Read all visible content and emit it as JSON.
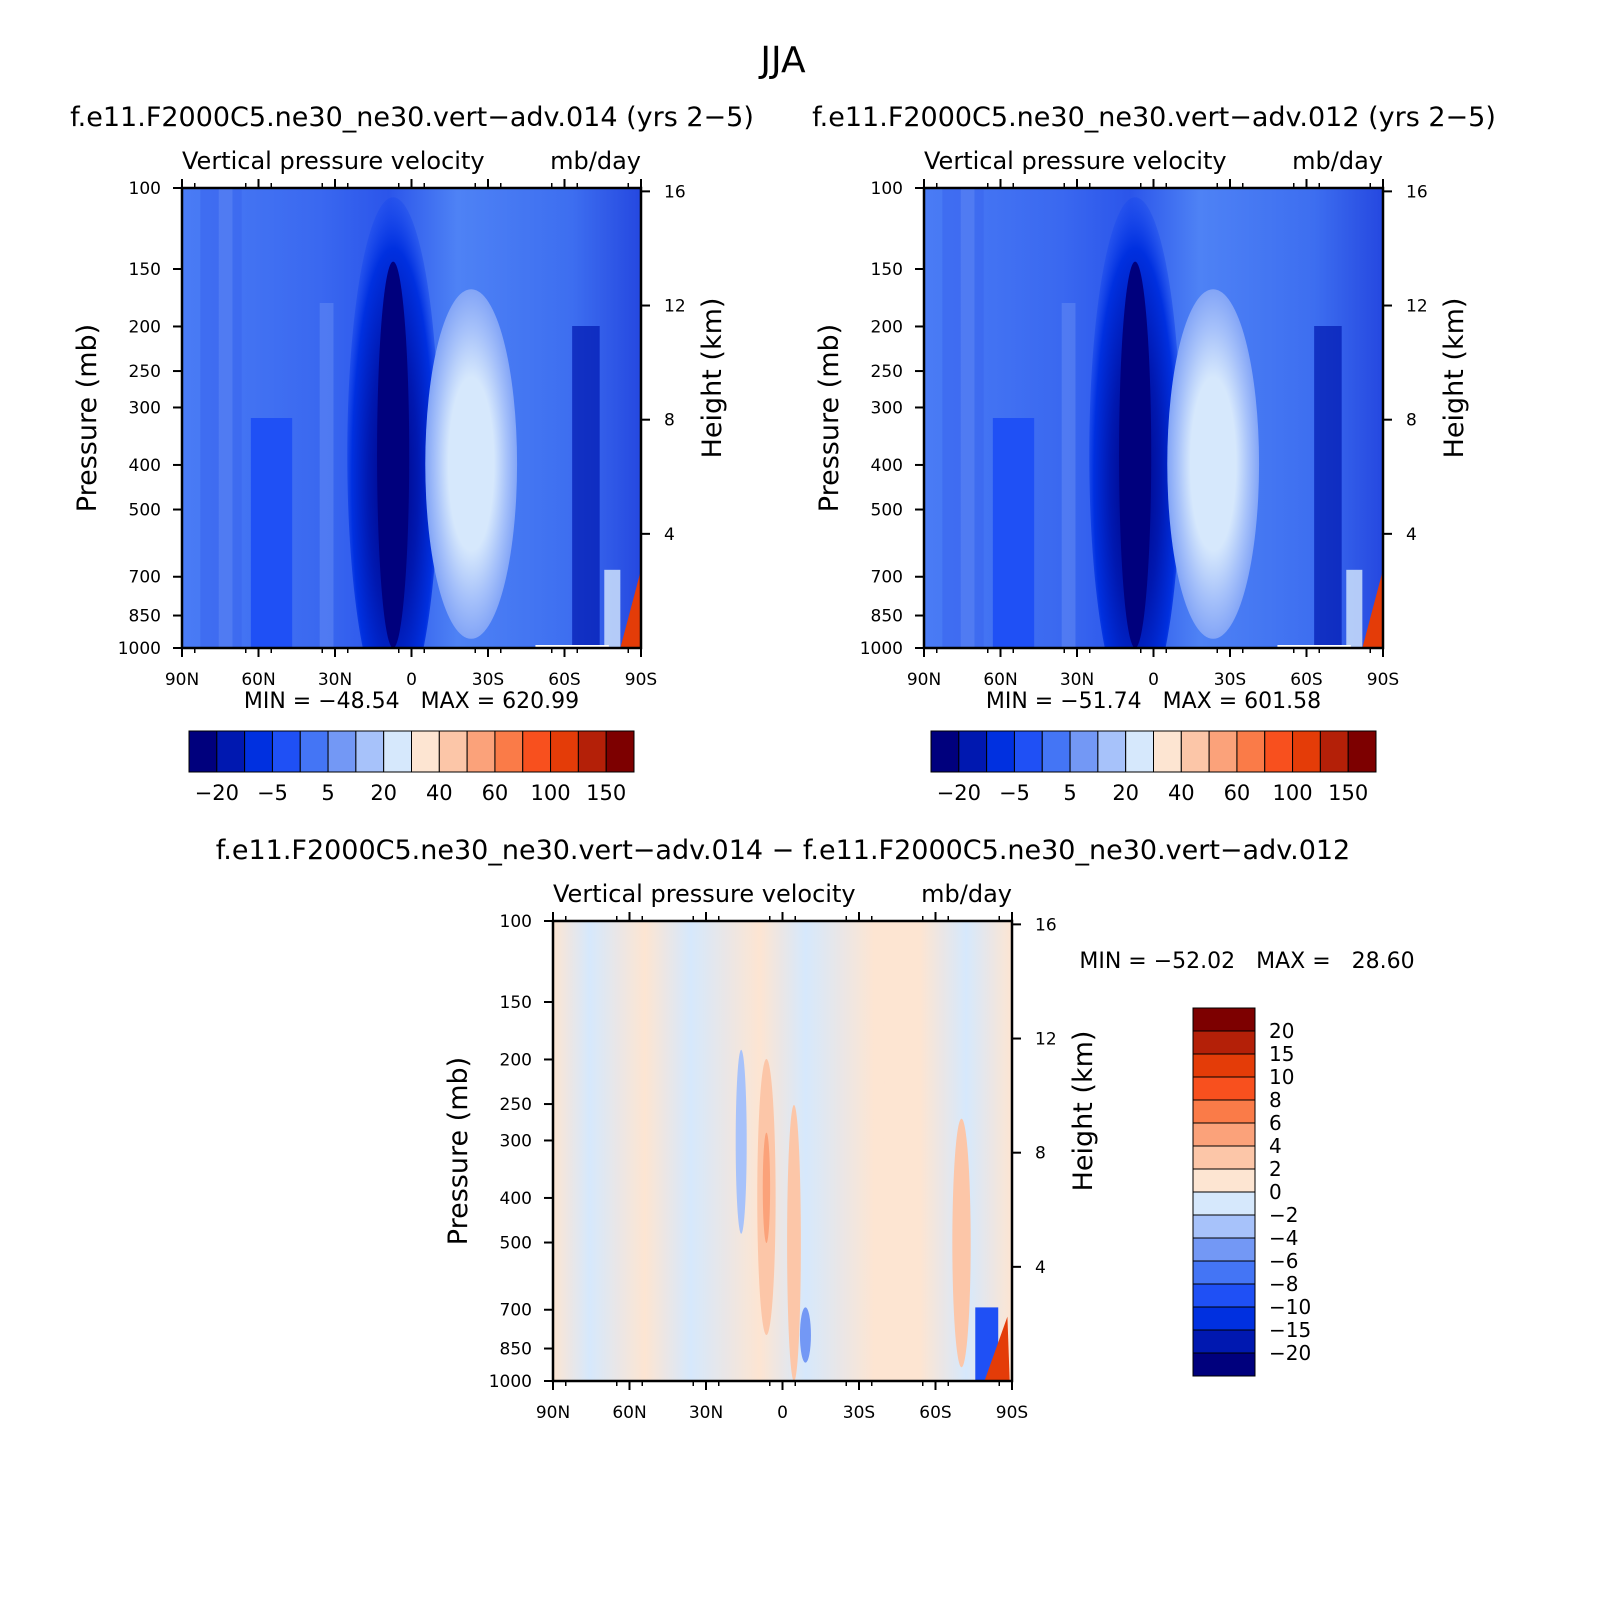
{
  "figure": {
    "title": "JJA"
  },
  "colors": {
    "abs_levels": [
      "#00007d",
      "#0018b0",
      "#0030e0",
      "#1f50f5",
      "#4475f5",
      "#7398f5",
      "#a7c2fa",
      "#d6e8fc",
      "#fde5d2",
      "#fcc6a8",
      "#fba27a",
      "#fa7b48",
      "#f8501e",
      "#e43c08",
      "#b42008",
      "#7d0000"
    ],
    "diff_levels": [
      "#00007d",
      "#0018b0",
      "#0030e0",
      "#1f50f5",
      "#4475f5",
      "#7398f5",
      "#a7c2fa",
      "#d6e8fc",
      "#fde5d2",
      "#fcc6a8",
      "#fba27a",
      "#fa7b48",
      "#f8501e",
      "#e43c08",
      "#b42008",
      "#7d0000"
    ]
  },
  "chart_data": [
    {
      "type": "heatmap",
      "title": "f.e11.F2000C5.ne30_ne30.vert−adv.014 (yrs 2−5)",
      "subtitle_left": "Vertical pressure velocity",
      "subtitle_right": "mb/day",
      "xlabel": "",
      "ylabel": "Pressure (mb)",
      "ylabel_right": "Height (km)",
      "x_ticks": [
        "90N",
        "60N",
        "30N",
        "0",
        "30S",
        "60S",
        "90S"
      ],
      "y_ticks": [
        "100",
        "150",
        "200",
        "250",
        "300",
        "400",
        "500",
        "700",
        "850",
        "1000"
      ],
      "y_ticks_right": [
        "16",
        "12",
        "8",
        "4"
      ],
      "y_scale": "log",
      "stats": "MIN = −48.54   MAX = 620.99",
      "colorbar_labels": [
        "−20",
        "−5",
        "5",
        "20",
        "40",
        "60",
        "100",
        "150"
      ],
      "colorbar_orientation": "horizontal"
    },
    {
      "type": "heatmap",
      "title": "f.e11.F2000C5.ne30_ne30.vert−adv.012 (yrs 2−5)",
      "subtitle_left": "Vertical pressure velocity",
      "subtitle_right": "mb/day",
      "xlabel": "",
      "ylabel": "Pressure (mb)",
      "ylabel_right": "Height (km)",
      "x_ticks": [
        "90N",
        "60N",
        "30N",
        "0",
        "30S",
        "60S",
        "90S"
      ],
      "y_ticks": [
        "100",
        "150",
        "200",
        "250",
        "300",
        "400",
        "500",
        "700",
        "850",
        "1000"
      ],
      "y_ticks_right": [
        "16",
        "12",
        "8",
        "4"
      ],
      "y_scale": "log",
      "stats": "MIN = −51.74   MAX = 601.58",
      "colorbar_labels": [
        "−20",
        "−5",
        "5",
        "20",
        "40",
        "60",
        "100",
        "150"
      ],
      "colorbar_orientation": "horizontal"
    },
    {
      "type": "heatmap",
      "title": "f.e11.F2000C5.ne30_ne30.vert−adv.014 − f.e11.F2000C5.ne30_ne30.vert−adv.012",
      "subtitle_left": "Vertical pressure velocity",
      "subtitle_right": "mb/day",
      "xlabel": "",
      "ylabel": "Pressure (mb)",
      "ylabel_right": "Height (km)",
      "x_ticks": [
        "90N",
        "60N",
        "30N",
        "0",
        "30S",
        "60S",
        "90S"
      ],
      "y_ticks": [
        "100",
        "150",
        "200",
        "250",
        "300",
        "400",
        "500",
        "700",
        "850",
        "1000"
      ],
      "y_ticks_right": [
        "16",
        "12",
        "8",
        "4"
      ],
      "y_scale": "log",
      "stats": "MIN = −52.02   MAX =   28.60",
      "colorbar_labels": [
        "20",
        "15",
        "10",
        "8",
        "6",
        "4",
        "2",
        "0",
        "−2",
        "−4",
        "−6",
        "−8",
        "−10",
        "−15",
        "−20"
      ],
      "colorbar_orientation": "vertical"
    }
  ]
}
